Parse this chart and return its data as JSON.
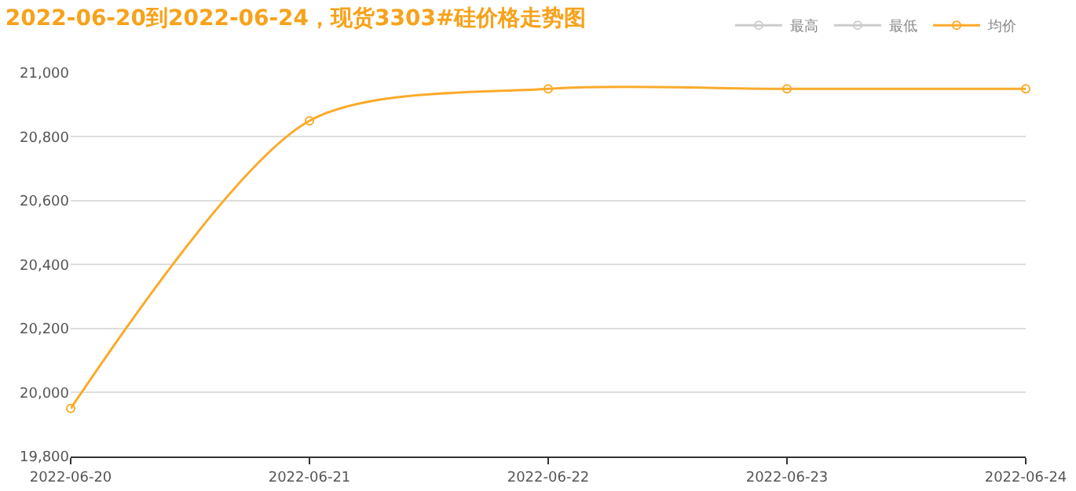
{
  "chart_data": {
    "type": "line",
    "title": "2022-06-20到2022-06-24，现货3303#硅价格走势图",
    "categories": [
      "2022-06-20",
      "2022-06-21",
      "2022-06-22",
      "2022-06-23",
      "2022-06-24"
    ],
    "series": [
      {
        "name": "最高",
        "color": "#cccccc",
        "values": [
          null,
          null,
          null,
          null,
          null
        ]
      },
      {
        "name": "最低",
        "color": "#cccccc",
        "values": [
          null,
          null,
          null,
          null,
          null
        ]
      },
      {
        "name": "均价",
        "color": "#fbaa2a",
        "values": [
          19950,
          20850,
          20950,
          20950,
          20950
        ]
      }
    ],
    "ylim": [
      19800,
      21000
    ],
    "yticks": [
      {
        "value": 19800,
        "label": "19,800"
      },
      {
        "value": 20000,
        "label": "20,000"
      },
      {
        "value": 20200,
        "label": "20,200"
      },
      {
        "value": 20400,
        "label": "20,400"
      },
      {
        "value": 20600,
        "label": "20,600"
      },
      {
        "value": 20800,
        "label": "20,800"
      },
      {
        "value": 21000,
        "label": "21,000"
      }
    ],
    "grid": "y",
    "legend": "top right",
    "marker": "circle",
    "line_style": "solid"
  }
}
